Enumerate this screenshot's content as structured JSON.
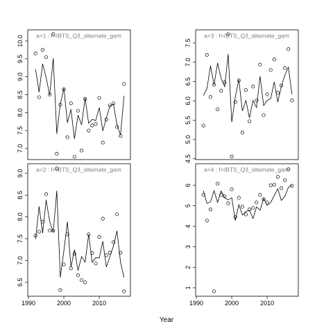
{
  "x_axis": {
    "label": "Year"
  },
  "chart_data": [
    {
      "type": "scatter",
      "title": "a=1 : f=IBTS_Q3_alternate_gam",
      "x": [
        1992,
        1993,
        1994,
        1995,
        1996,
        1997,
        1998,
        1999,
        2000,
        2001,
        2002,
        2003,
        2004,
        2005,
        2006,
        2007,
        2008,
        2009,
        2010,
        2011,
        2012,
        2013,
        2014,
        2015,
        2016,
        2017
      ],
      "values": [
        9.65,
        8.43,
        9.75,
        9.55,
        8.5,
        10.19,
        6.85,
        8.22,
        8.65,
        7.31,
        8.26,
        6.77,
        8.05,
        6.94,
        8.38,
        7.5,
        7.64,
        7.68,
        8.41,
        7.16,
        7.81,
        8.2,
        8.26,
        7.6,
        7.35,
        8.8
      ],
      "line_values": [
        9.21,
        8.57,
        9.36,
        8.97,
        8.49,
        9.52,
        7.41,
        8.24,
        8.68,
        7.72,
        8.09,
        7.27,
        7.93,
        7.66,
        8.41,
        7.7,
        7.81,
        7.78,
        8.14,
        7.49,
        7.85,
        8.18,
        8.24,
        7.66,
        7.37,
        8.47
      ],
      "xlim": [
        1989.8,
        2018.8
      ],
      "ylim": [
        6.69,
        10.31
      ],
      "yticks": [
        {
          "value": 7,
          "label": "7.0"
        },
        {
          "value": 7.5,
          "label": "7.5"
        },
        {
          "value": 8,
          "label": "8.0"
        },
        {
          "value": 8.5,
          "label": "8.5"
        },
        {
          "value": 9,
          "label": "9.0"
        },
        {
          "value": 9.5,
          "label": "9.5"
        },
        {
          "value": 10,
          "label": "10.0"
        }
      ]
    },
    {
      "type": "scatter",
      "title": "a=2 : f=IBTS_Q3_alternate_gam",
      "x": [
        1992,
        1993,
        1994,
        1995,
        1996,
        1997,
        1998,
        1999,
        2000,
        2001,
        2002,
        2003,
        2004,
        2005,
        2006,
        2007,
        2008,
        2009,
        2010,
        2011,
        2012,
        2013,
        2014,
        2015,
        2016,
        2017
      ],
      "values": [
        7.57,
        7.66,
        7.89,
        8.52,
        7.69,
        7.68,
        9.11,
        6.32,
        6.91,
        7.6,
        6.82,
        7.15,
        6.66,
        6.55,
        6.5,
        7.6,
        7.17,
        6.93,
        7.54,
        7.96,
        7.12,
        7.18,
        7.42,
        8.06,
        7.18,
        6.29
      ],
      "line_values": [
        7.49,
        8.24,
        7.63,
        8.39,
        7.89,
        7.65,
        8.6,
        6.61,
        7.22,
        7.89,
        6.85,
        7.25,
        6.77,
        7.09,
        6.96,
        7.6,
        6.96,
        7.06,
        7.06,
        7.44,
        6.85,
        7.09,
        7.33,
        7.68,
        6.96,
        6.61
      ],
      "xlim": [
        1989.8,
        2018.8
      ],
      "ylim": [
        6.18,
        9.22
      ],
      "xticks": [
        1990,
        2000,
        2010
      ],
      "yticks": [
        {
          "value": 6.5,
          "label": "6.5"
        },
        {
          "value": 7,
          "label": "7.0"
        },
        {
          "value": 7.5,
          "label": "7.5"
        },
        {
          "value": 8,
          "label": "8.0"
        },
        {
          "value": 8.5,
          "label": "8.5"
        },
        {
          "value": 9,
          "label": "9.0"
        }
      ]
    },
    {
      "type": "scatter",
      "title": "a=3 : f=IBTS_Q3_alternate_gam",
      "x": [
        1992,
        1993,
        1994,
        1995,
        1996,
        1997,
        1998,
        1999,
        2000,
        2001,
        2002,
        2003,
        2004,
        2005,
        2006,
        2007,
        2008,
        2009,
        2010,
        2011,
        2012,
        2013,
        2014,
        2015,
        2016,
        2017
      ],
      "values": [
        5.36,
        7.19,
        6.1,
        6.42,
        5.78,
        6.26,
        6.48,
        7.73,
        4.56,
        5.97,
        6.53,
        5.18,
        6.28,
        5.47,
        6.37,
        6.01,
        6.94,
        5.63,
        6.17,
        6.8,
        7.07,
        6.21,
        6.4,
        6.85,
        7.34,
        6.01
      ],
      "line_values": [
        6.14,
        6.32,
        6.91,
        6.42,
        6.98,
        6.58,
        6.37,
        7.21,
        5.45,
        6.1,
        6.55,
        5.74,
        6.01,
        5.56,
        6.01,
        5.83,
        6.64,
        5.88,
        6.01,
        6.06,
        6.49,
        5.97,
        6.37,
        6.67,
        6.87,
        6.17
      ],
      "xlim": [
        1989.8,
        2018.8
      ],
      "ylim": [
        4.48,
        7.84
      ],
      "yticks": [
        {
          "value": 4.5,
          "label": "4.5"
        },
        {
          "value": 5,
          "label": "5.0"
        },
        {
          "value": 5.5,
          "label": "5.5"
        },
        {
          "value": 6,
          "label": "6.0"
        },
        {
          "value": 6.5,
          "label": "6.5"
        },
        {
          "value": 7,
          "label": "7.0"
        },
        {
          "value": 7.5,
          "label": "7.5"
        }
      ]
    },
    {
      "type": "scatter",
      "title": "a=4 : f=IBTS_Q3_alternate_gam",
      "x": [
        1992,
        1993,
        1994,
        1995,
        1996,
        1997,
        1998,
        1999,
        2000,
        2001,
        2002,
        2003,
        2004,
        2005,
        2006,
        2007,
        2008,
        2009,
        2010,
        2011,
        2012,
        2013,
        2014,
        2015,
        2016,
        2017
      ],
      "values": [
        5.53,
        4.28,
        4.82,
        0.83,
        6.07,
        5.53,
        5.46,
        5.12,
        5.8,
        4.45,
        5.39,
        4.95,
        4.58,
        4.82,
        4.89,
        5.16,
        5.53,
        5.32,
        5.16,
        6.0,
        6.03,
        6.41,
        5.86,
        6.24,
        6.78,
        5.97
      ],
      "line_values": [
        5.73,
        5.12,
        5.19,
        5.73,
        5.16,
        5.73,
        5.39,
        5.29,
        5.39,
        4.28,
        5.05,
        4.55,
        4.72,
        4.78,
        4.38,
        4.95,
        4.78,
        5.36,
        5.02,
        5.16,
        5.49,
        5.83,
        5.26,
        5.46,
        5.9,
        6.0
      ],
      "xlim": [
        1989.8,
        2018.8
      ],
      "ylim": [
        0.59,
        7.05
      ],
      "xticks": [
        1990,
        2000,
        2010
      ],
      "yticks": [
        1,
        2,
        3,
        4,
        5,
        6
      ]
    }
  ]
}
